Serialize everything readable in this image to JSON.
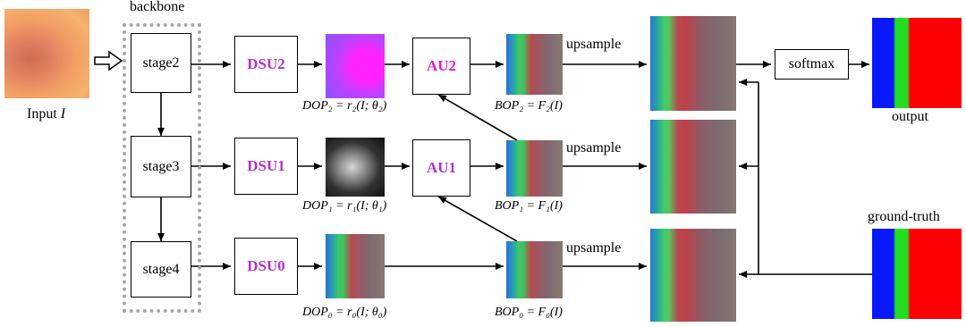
{
  "labels": {
    "backbone": "backbone",
    "input": "Input ",
    "input_var": "I",
    "output": "output",
    "ground_truth": "ground-truth"
  },
  "stages": [
    "stage2",
    "stage3",
    "stage4"
  ],
  "dsu": [
    "DSU2",
    "DSU1",
    "DSU0"
  ],
  "au": [
    "AU2",
    "AU1"
  ],
  "softmax": "softmax",
  "upsample": [
    "upsample",
    "upsample",
    "upsample"
  ],
  "formulas": {
    "dop2": "DOP₂ = r₂(I; θ₂)",
    "dop1": "DOP₁ = r₁(I; θ₁)",
    "dop0": "DOP₀ = r₀(I; θ₀)",
    "bop2": "BOP₂ = F₂(I)",
    "bop1": "BOP₁ = F₁(I)",
    "bop0": "BOP₀ = F₀(I)"
  },
  "colors": {
    "dsu_text": "#b431cc",
    "au2_text": "#e01ad0",
    "au1_text": "#b431cc",
    "dotted_border": "#a8a8a8"
  }
}
